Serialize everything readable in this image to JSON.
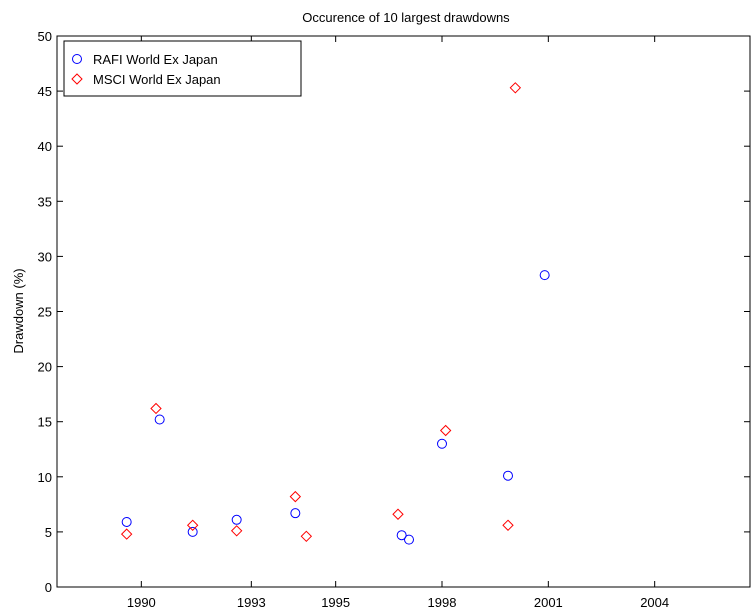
{
  "chart_data": {
    "type": "scatter",
    "title": "Occurence of 10 largest drawdowns",
    "xlabel": "",
    "ylabel": "Drawdown (%)",
    "xlim": [
      1987.7,
      2006.6
    ],
    "ylim": [
      0,
      50
    ],
    "x_ticks": [
      {
        "value": 1990.0,
        "label": "1990"
      },
      {
        "value": 1993.0,
        "label": "1993"
      },
      {
        "value": 1995.3,
        "label": "1995"
      },
      {
        "value": 1998.2,
        "label": "1998"
      },
      {
        "value": 2001.1,
        "label": "2001"
      },
      {
        "value": 2004.0,
        "label": "2004"
      }
    ],
    "y_ticks": [
      0,
      5,
      10,
      15,
      20,
      25,
      30,
      35,
      40,
      45,
      50
    ],
    "grid": false,
    "legend_position": "top-left",
    "series": [
      {
        "name": "RAFI World Ex Japan",
        "marker": "circle",
        "color": "#0000ff",
        "points": [
          [
            1989.6,
            5.9
          ],
          [
            1990.5,
            15.2
          ],
          [
            1991.4,
            5.0
          ],
          [
            1992.6,
            6.1
          ],
          [
            1994.2,
            6.7
          ],
          [
            1997.1,
            4.7
          ],
          [
            1997.3,
            4.3
          ],
          [
            1998.2,
            13.0
          ],
          [
            2000.0,
            10.1
          ],
          [
            2001.0,
            28.3
          ]
        ]
      },
      {
        "name": "MSCI World Ex Japan",
        "marker": "diamond",
        "color": "#ff0000",
        "points": [
          [
            1989.6,
            4.8
          ],
          [
            1990.4,
            16.2
          ],
          [
            1991.4,
            5.6
          ],
          [
            1992.6,
            5.1
          ],
          [
            1994.2,
            8.2
          ],
          [
            1994.5,
            4.6
          ],
          [
            1997.0,
            6.6
          ],
          [
            1998.3,
            14.2
          ],
          [
            2000.0,
            5.6
          ],
          [
            2000.2,
            45.3
          ]
        ]
      }
    ]
  }
}
